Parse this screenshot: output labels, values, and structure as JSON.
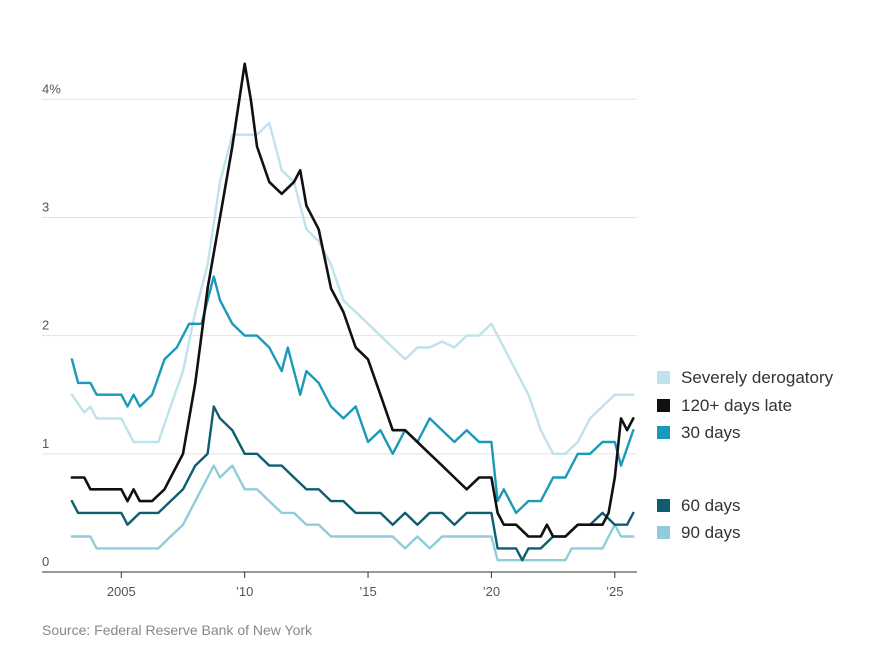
{
  "chart_data": {
    "type": "line",
    "yunit": "%",
    "ylim": [
      0,
      4.4
    ],
    "xlim": [
      2002.8,
      2025.9
    ],
    "y_ticks": [
      {
        "value": 0,
        "label": "0"
      },
      {
        "value": 1,
        "label": "1"
      },
      {
        "value": 2,
        "label": "2"
      },
      {
        "value": 3,
        "label": "3"
      },
      {
        "value": 4,
        "label": "4%"
      }
    ],
    "x_ticks": [
      {
        "value": 2005,
        "label": "2005"
      },
      {
        "value": 2010,
        "label": "’10"
      },
      {
        "value": 2015,
        "label": "’15"
      },
      {
        "value": 2020,
        "label": "’20"
      },
      {
        "value": 2025,
        "label": "’25"
      }
    ],
    "grid": true,
    "legend_position": "right",
    "series": [
      {
        "name": "Severely derogatory",
        "color": "#bfe2ec",
        "points": [
          [
            2003.0,
            1.5
          ],
          [
            2003.5,
            1.35
          ],
          [
            2003.75,
            1.4
          ],
          [
            2004.0,
            1.3
          ],
          [
            2005.0,
            1.3
          ],
          [
            2005.5,
            1.1
          ],
          [
            2006.5,
            1.1
          ],
          [
            2007.0,
            1.4
          ],
          [
            2007.5,
            1.7
          ],
          [
            2008.0,
            2.2
          ],
          [
            2008.5,
            2.6
          ],
          [
            2009.0,
            3.3
          ],
          [
            2009.5,
            3.7
          ],
          [
            2010.0,
            3.7
          ],
          [
            2010.5,
            3.7
          ],
          [
            2011.0,
            3.8
          ],
          [
            2011.5,
            3.4
          ],
          [
            2012.0,
            3.3
          ],
          [
            2012.5,
            2.9
          ],
          [
            2013.0,
            2.8
          ],
          [
            2013.5,
            2.6
          ],
          [
            2014.0,
            2.3
          ],
          [
            2014.5,
            2.2
          ],
          [
            2015.0,
            2.1
          ],
          [
            2015.5,
            2.0
          ],
          [
            2016.0,
            1.9
          ],
          [
            2016.5,
            1.8
          ],
          [
            2017.0,
            1.9
          ],
          [
            2017.5,
            1.9
          ],
          [
            2018.0,
            1.95
          ],
          [
            2018.5,
            1.9
          ],
          [
            2019.0,
            2.0
          ],
          [
            2019.5,
            2.0
          ],
          [
            2020.0,
            2.1
          ],
          [
            2020.5,
            1.9
          ],
          [
            2021.0,
            1.7
          ],
          [
            2021.5,
            1.5
          ],
          [
            2022.0,
            1.2
          ],
          [
            2022.5,
            1.0
          ],
          [
            2023.0,
            1.0
          ],
          [
            2023.5,
            1.1
          ],
          [
            2024.0,
            1.3
          ],
          [
            2024.5,
            1.4
          ],
          [
            2025.0,
            1.5
          ],
          [
            2025.75,
            1.5
          ]
        ]
      },
      {
        "name": "120+ days late",
        "color": "#111111",
        "points": [
          [
            2003.0,
            0.8
          ],
          [
            2003.5,
            0.8
          ],
          [
            2003.75,
            0.7
          ],
          [
            2004.0,
            0.7
          ],
          [
            2005.0,
            0.7
          ],
          [
            2005.25,
            0.6
          ],
          [
            2005.5,
            0.7
          ],
          [
            2005.75,
            0.6
          ],
          [
            2006.25,
            0.6
          ],
          [
            2006.75,
            0.7
          ],
          [
            2007.0,
            0.8
          ],
          [
            2007.5,
            1.0
          ],
          [
            2008.0,
            1.6
          ],
          [
            2008.5,
            2.4
          ],
          [
            2009.0,
            3.0
          ],
          [
            2009.5,
            3.6
          ],
          [
            2010.0,
            4.3
          ],
          [
            2010.25,
            4.0
          ],
          [
            2010.5,
            3.6
          ],
          [
            2011.0,
            3.3
          ],
          [
            2011.5,
            3.2
          ],
          [
            2012.0,
            3.3
          ],
          [
            2012.25,
            3.4
          ],
          [
            2012.5,
            3.1
          ],
          [
            2013.0,
            2.9
          ],
          [
            2013.5,
            2.4
          ],
          [
            2014.0,
            2.2
          ],
          [
            2014.5,
            1.9
          ],
          [
            2015.0,
            1.8
          ],
          [
            2015.5,
            1.5
          ],
          [
            2016.0,
            1.2
          ],
          [
            2016.5,
            1.2
          ],
          [
            2017.0,
            1.1
          ],
          [
            2017.5,
            1.0
          ],
          [
            2018.0,
            0.9
          ],
          [
            2018.5,
            0.8
          ],
          [
            2019.0,
            0.7
          ],
          [
            2019.5,
            0.8
          ],
          [
            2020.0,
            0.8
          ],
          [
            2020.25,
            0.5
          ],
          [
            2020.5,
            0.4
          ],
          [
            2021.0,
            0.4
          ],
          [
            2021.5,
            0.3
          ],
          [
            2022.0,
            0.3
          ],
          [
            2022.25,
            0.4
          ],
          [
            2022.5,
            0.3
          ],
          [
            2023.0,
            0.3
          ],
          [
            2023.5,
            0.4
          ],
          [
            2024.0,
            0.4
          ],
          [
            2024.5,
            0.4
          ],
          [
            2024.75,
            0.5
          ],
          [
            2025.0,
            0.8
          ],
          [
            2025.25,
            1.3
          ],
          [
            2025.5,
            1.2
          ],
          [
            2025.75,
            1.3
          ]
        ]
      },
      {
        "name": "30 days",
        "color": "#1a9ab8",
        "points": [
          [
            2003.0,
            1.8
          ],
          [
            2003.25,
            1.6
          ],
          [
            2003.75,
            1.6
          ],
          [
            2004.0,
            1.5
          ],
          [
            2005.0,
            1.5
          ],
          [
            2005.25,
            1.4
          ],
          [
            2005.5,
            1.5
          ],
          [
            2005.75,
            1.4
          ],
          [
            2006.25,
            1.5
          ],
          [
            2006.75,
            1.8
          ],
          [
            2007.25,
            1.9
          ],
          [
            2007.75,
            2.1
          ],
          [
            2008.25,
            2.1
          ],
          [
            2008.75,
            2.5
          ],
          [
            2009.0,
            2.3
          ],
          [
            2009.5,
            2.1
          ],
          [
            2010.0,
            2.0
          ],
          [
            2010.5,
            2.0
          ],
          [
            2011.0,
            1.9
          ],
          [
            2011.5,
            1.7
          ],
          [
            2011.75,
            1.9
          ],
          [
            2012.25,
            1.5
          ],
          [
            2012.5,
            1.7
          ],
          [
            2013.0,
            1.6
          ],
          [
            2013.5,
            1.4
          ],
          [
            2014.0,
            1.3
          ],
          [
            2014.5,
            1.4
          ],
          [
            2015.0,
            1.1
          ],
          [
            2015.5,
            1.2
          ],
          [
            2016.0,
            1.0
          ],
          [
            2016.5,
            1.2
          ],
          [
            2017.0,
            1.1
          ],
          [
            2017.5,
            1.3
          ],
          [
            2018.0,
            1.2
          ],
          [
            2018.5,
            1.1
          ],
          [
            2019.0,
            1.2
          ],
          [
            2019.5,
            1.1
          ],
          [
            2020.0,
            1.1
          ],
          [
            2020.25,
            0.6
          ],
          [
            2020.5,
            0.7
          ],
          [
            2021.0,
            0.5
          ],
          [
            2021.5,
            0.6
          ],
          [
            2022.0,
            0.6
          ],
          [
            2022.5,
            0.8
          ],
          [
            2023.0,
            0.8
          ],
          [
            2023.5,
            1.0
          ],
          [
            2024.0,
            1.0
          ],
          [
            2024.5,
            1.1
          ],
          [
            2025.0,
            1.1
          ],
          [
            2025.25,
            0.9
          ],
          [
            2025.75,
            1.2
          ]
        ]
      },
      {
        "name": "60 days",
        "color": "#0d5e6e",
        "points": [
          [
            2003.0,
            0.6
          ],
          [
            2003.25,
            0.5
          ],
          [
            2004.0,
            0.5
          ],
          [
            2005.0,
            0.5
          ],
          [
            2005.25,
            0.4
          ],
          [
            2005.75,
            0.5
          ],
          [
            2006.5,
            0.5
          ],
          [
            2007.0,
            0.6
          ],
          [
            2007.5,
            0.7
          ],
          [
            2008.0,
            0.9
          ],
          [
            2008.5,
            1.0
          ],
          [
            2008.75,
            1.4
          ],
          [
            2009.0,
            1.3
          ],
          [
            2009.5,
            1.2
          ],
          [
            2010.0,
            1.0
          ],
          [
            2010.5,
            1.0
          ],
          [
            2011.0,
            0.9
          ],
          [
            2011.5,
            0.9
          ],
          [
            2012.0,
            0.8
          ],
          [
            2012.5,
            0.7
          ],
          [
            2013.0,
            0.7
          ],
          [
            2013.5,
            0.6
          ],
          [
            2014.0,
            0.6
          ],
          [
            2014.5,
            0.5
          ],
          [
            2015.0,
            0.5
          ],
          [
            2015.5,
            0.5
          ],
          [
            2016.0,
            0.4
          ],
          [
            2016.5,
            0.5
          ],
          [
            2017.0,
            0.4
          ],
          [
            2017.5,
            0.5
          ],
          [
            2018.0,
            0.5
          ],
          [
            2018.5,
            0.4
          ],
          [
            2019.0,
            0.5
          ],
          [
            2019.5,
            0.5
          ],
          [
            2020.0,
            0.5
          ],
          [
            2020.25,
            0.2
          ],
          [
            2021.0,
            0.2
          ],
          [
            2021.25,
            0.1
          ],
          [
            2021.5,
            0.2
          ],
          [
            2022.0,
            0.2
          ],
          [
            2022.5,
            0.3
          ],
          [
            2023.0,
            0.3
          ],
          [
            2023.5,
            0.4
          ],
          [
            2024.0,
            0.4
          ],
          [
            2024.5,
            0.5
          ],
          [
            2025.0,
            0.4
          ],
          [
            2025.5,
            0.4
          ],
          [
            2025.75,
            0.5
          ]
        ]
      },
      {
        "name": "90 days",
        "color": "#8ecdd9",
        "points": [
          [
            2003.0,
            0.3
          ],
          [
            2003.75,
            0.3
          ],
          [
            2004.0,
            0.2
          ],
          [
            2005.0,
            0.2
          ],
          [
            2006.5,
            0.2
          ],
          [
            2007.0,
            0.3
          ],
          [
            2007.5,
            0.4
          ],
          [
            2008.0,
            0.6
          ],
          [
            2008.5,
            0.8
          ],
          [
            2008.75,
            0.9
          ],
          [
            2009.0,
            0.8
          ],
          [
            2009.5,
            0.9
          ],
          [
            2010.0,
            0.7
          ],
          [
            2010.5,
            0.7
          ],
          [
            2011.0,
            0.6
          ],
          [
            2011.5,
            0.5
          ],
          [
            2012.0,
            0.5
          ],
          [
            2012.5,
            0.4
          ],
          [
            2013.0,
            0.4
          ],
          [
            2013.5,
            0.3
          ],
          [
            2014.0,
            0.3
          ],
          [
            2015.0,
            0.3
          ],
          [
            2016.0,
            0.3
          ],
          [
            2016.5,
            0.2
          ],
          [
            2017.0,
            0.3
          ],
          [
            2017.5,
            0.2
          ],
          [
            2018.0,
            0.3
          ],
          [
            2019.0,
            0.3
          ],
          [
            2020.0,
            0.3
          ],
          [
            2020.25,
            0.1
          ],
          [
            2021.0,
            0.1
          ],
          [
            2022.0,
            0.1
          ],
          [
            2023.0,
            0.1
          ],
          [
            2023.25,
            0.2
          ],
          [
            2024.0,
            0.2
          ],
          [
            2024.5,
            0.2
          ],
          [
            2025.0,
            0.4
          ],
          [
            2025.25,
            0.3
          ],
          [
            2025.75,
            0.3
          ]
        ]
      }
    ],
    "legend": [
      {
        "label": "Severely derogatory",
        "color": "#bfe2ec"
      },
      {
        "label": "120+ days late",
        "color": "#111111"
      },
      {
        "label": "30 days",
        "color": "#1a9ab8"
      },
      {
        "label": "60 days",
        "color": "#0d5e6e"
      },
      {
        "label": "90 days",
        "color": "#8ecdd9"
      }
    ]
  },
  "source": "Source: Federal Reserve Bank of New York"
}
